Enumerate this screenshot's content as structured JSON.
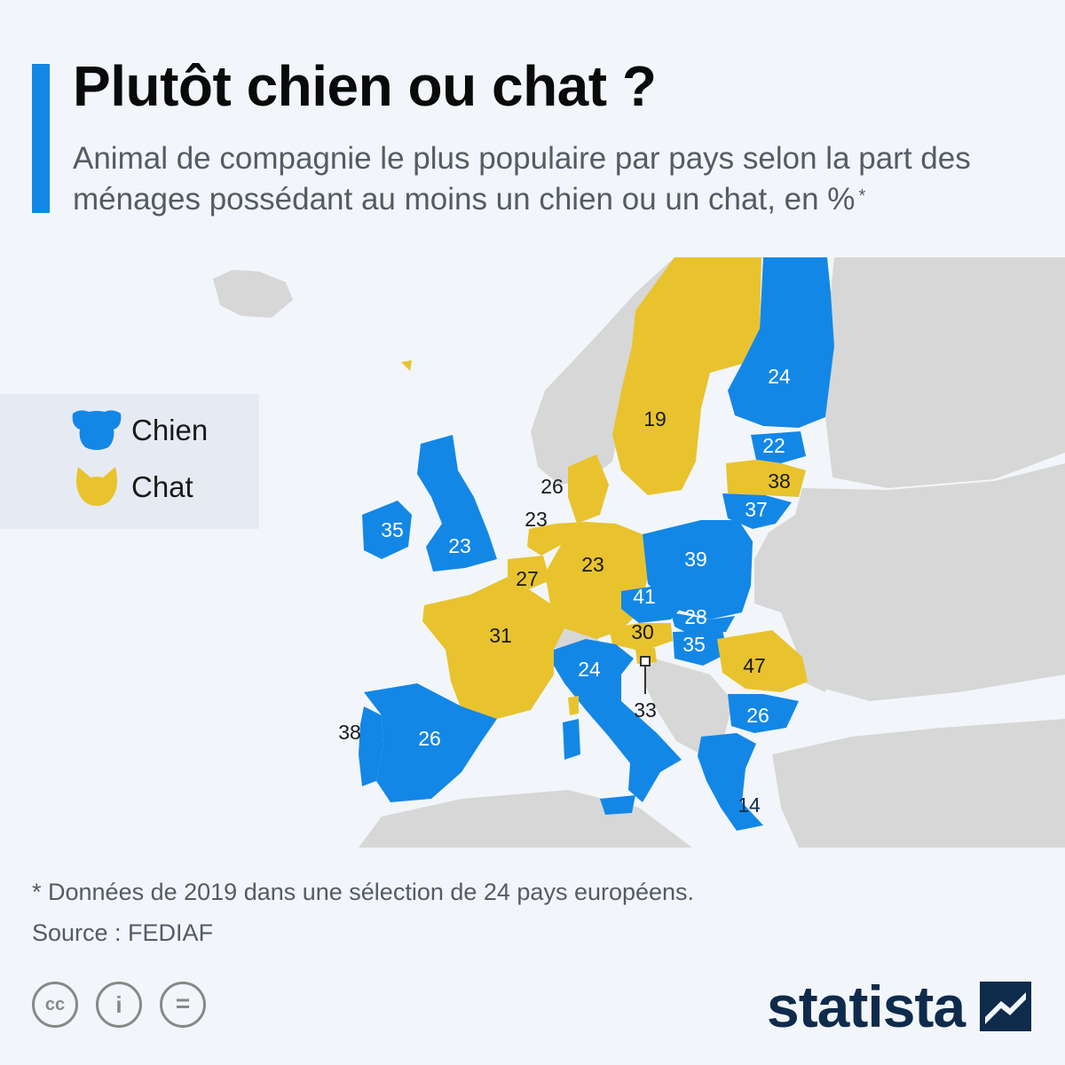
{
  "header": {
    "title": "Plutôt chien ou chat ?",
    "subtitle": "Animal de compagnie le plus populaire par pays selon la part des ménages possédant au moins un chien ou un chat, en %",
    "subtitle_mark": "*"
  },
  "colors": {
    "chien": "#1387e6",
    "chat": "#e8c32e",
    "land": "#d7d7d7",
    "sea": "#f2f6fa",
    "accent_bar": "#1387e6"
  },
  "legend": {
    "items": [
      {
        "label": "Chien",
        "icon": "dog-icon",
        "color": "#1387e6"
      },
      {
        "label": "Chat",
        "icon": "cat-icon",
        "color": "#e8c32e"
      }
    ]
  },
  "map": {
    "values": [
      {
        "value": "24",
        "pet": "chien"
      },
      {
        "value": "19",
        "pet": "chat"
      },
      {
        "value": "22",
        "pet": "chien"
      },
      {
        "value": "38",
        "pet": "chat"
      },
      {
        "value": "37",
        "pet": "chien"
      },
      {
        "value": "26",
        "pet": "chat"
      },
      {
        "value": "23",
        "pet": "chat"
      },
      {
        "value": "35",
        "pet": "chien"
      },
      {
        "value": "23",
        "pet": "chien"
      },
      {
        "value": "27",
        "pet": "chat"
      },
      {
        "value": "23",
        "pet": "chat"
      },
      {
        "value": "39",
        "pet": "chien"
      },
      {
        "value": "41",
        "pet": "chien"
      },
      {
        "value": "28",
        "pet": "chien"
      },
      {
        "value": "30",
        "pet": "chat"
      },
      {
        "value": "35",
        "pet": "chien"
      },
      {
        "value": "31",
        "pet": "chat"
      },
      {
        "value": "24",
        "pet": "chien"
      },
      {
        "value": "47",
        "pet": "chat"
      },
      {
        "value": "33",
        "pet": "chat"
      },
      {
        "value": "26",
        "pet": "chien"
      },
      {
        "value": "38",
        "pet": "chien"
      },
      {
        "value": "26",
        "pet": "chien"
      },
      {
        "value": "14",
        "pet": "chien"
      }
    ]
  },
  "footer": {
    "footnote": "* Données de 2019 dans une sélection de 24 pays européens.",
    "source": "Source : FEDIAF",
    "cc": [
      "cc",
      "i",
      "="
    ],
    "brand": "statista"
  }
}
